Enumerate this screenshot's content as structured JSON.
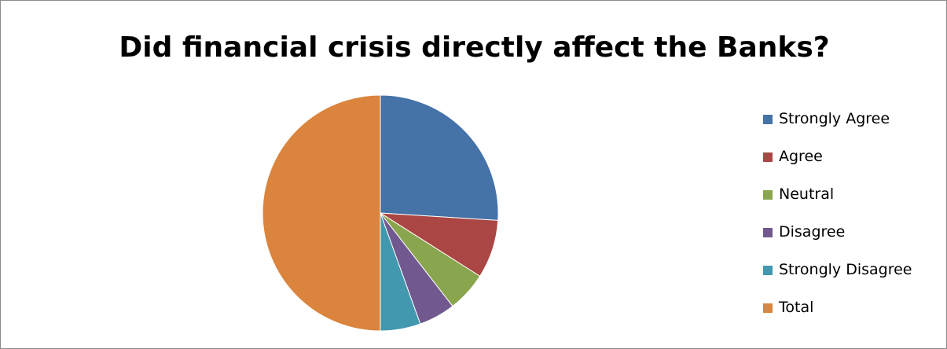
{
  "chart_data": {
    "type": "pie",
    "title": "Did financial crisis directly affect the Banks?",
    "legend_position": "right",
    "slices": [
      {
        "label": "Strongly Agree",
        "value": 26,
        "color": "#4572a7"
      },
      {
        "label": "Agree",
        "value": 8,
        "color": "#aa4643"
      },
      {
        "label": "Neutral",
        "value": 5.5,
        "color": "#89a54e"
      },
      {
        "label": "Disagree",
        "value": 5,
        "color": "#71588f"
      },
      {
        "label": "Strongly Disagree",
        "value": 5.5,
        "color": "#4198af"
      },
      {
        "label": "Total",
        "value": 50,
        "color": "#db843d"
      }
    ]
  }
}
